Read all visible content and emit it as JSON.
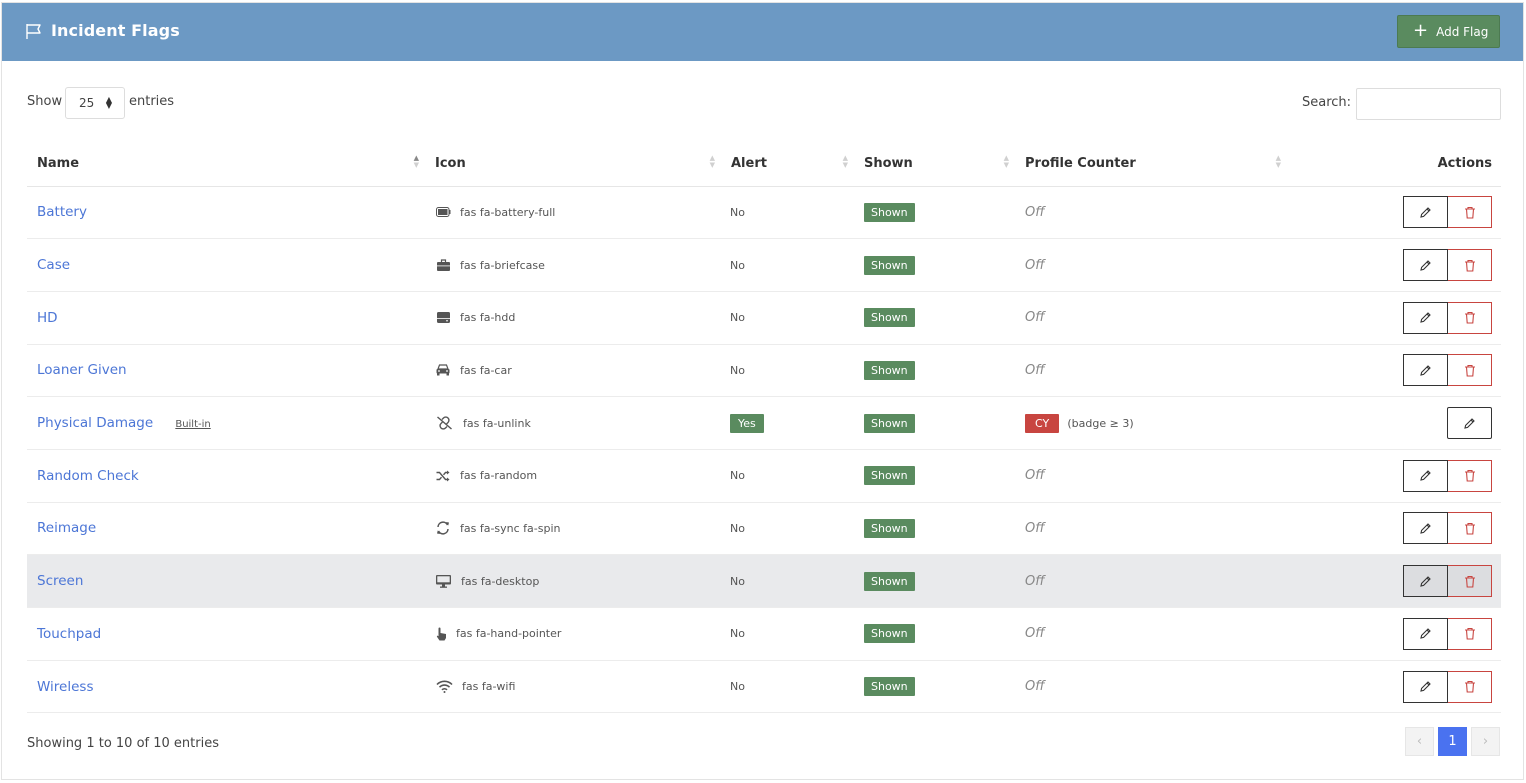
{
  "header": {
    "title": "Incident Flags",
    "add_label": "Add Flag"
  },
  "length": {
    "show_label": "Show",
    "value": "25",
    "entries_label": "entries"
  },
  "search": {
    "label": "Search:",
    "placeholder": ""
  },
  "table": {
    "columns": [
      "Name",
      "Icon",
      "Alert",
      "Shown",
      "Profile Counter",
      "Actions"
    ],
    "sorted_column": "Name",
    "rows": [
      {
        "name": "Battery",
        "icon": "fas fa-battery-full",
        "icon_semantic": "battery-full-icon",
        "alert": "No",
        "shown": "Shown",
        "counter": "Off"
      },
      {
        "name": "Case",
        "icon": "fas fa-briefcase",
        "icon_semantic": "briefcase-icon",
        "alert": "No",
        "shown": "Shown",
        "counter": "Off"
      },
      {
        "name": "HD",
        "icon": "fas fa-hdd",
        "icon_semantic": "hdd-icon",
        "alert": "No",
        "shown": "Shown",
        "counter": "Off"
      },
      {
        "name": "Loaner Given",
        "icon": "fas fa-car",
        "icon_semantic": "car-icon",
        "alert": "No",
        "shown": "Shown",
        "counter": "Off"
      },
      {
        "name": "Physical Damage",
        "builtin": "Built-in",
        "icon": "fas fa-unlink",
        "icon_semantic": "unlink-icon",
        "alert": "Yes",
        "shown": "Shown",
        "counter_badge": "CY",
        "counter_note": "(badge ≥ 3)"
      },
      {
        "name": "Random Check",
        "icon": "fas fa-random",
        "icon_semantic": "random-icon",
        "alert": "No",
        "shown": "Shown",
        "counter": "Off"
      },
      {
        "name": "Reimage",
        "icon": "fas fa-sync fa-spin",
        "icon_semantic": "sync-icon",
        "alert": "No",
        "shown": "Shown",
        "counter": "Off"
      },
      {
        "name": "Screen",
        "icon": "fas fa-desktop",
        "icon_semantic": "desktop-icon",
        "alert": "No",
        "shown": "Shown",
        "counter": "Off"
      },
      {
        "name": "Touchpad",
        "icon": "fas fa-hand-pointer",
        "icon_semantic": "hand-pointer-icon",
        "alert": "No",
        "shown": "Shown",
        "counter": "Off"
      },
      {
        "name": "Wireless",
        "icon": "fas fa-wifi",
        "icon_semantic": "wifi-icon",
        "alert": "No",
        "shown": "Shown",
        "counter": "Off"
      }
    ]
  },
  "footer": {
    "info": "Showing 1 to 10 of 10 entries",
    "prev": "‹",
    "page": "1",
    "next": "›"
  },
  "colors": {
    "header_bg": "#6c99c4",
    "success": "#5a8b5f",
    "danger": "#c84540",
    "link": "#4c76d6",
    "page_active": "#4a72f0"
  }
}
